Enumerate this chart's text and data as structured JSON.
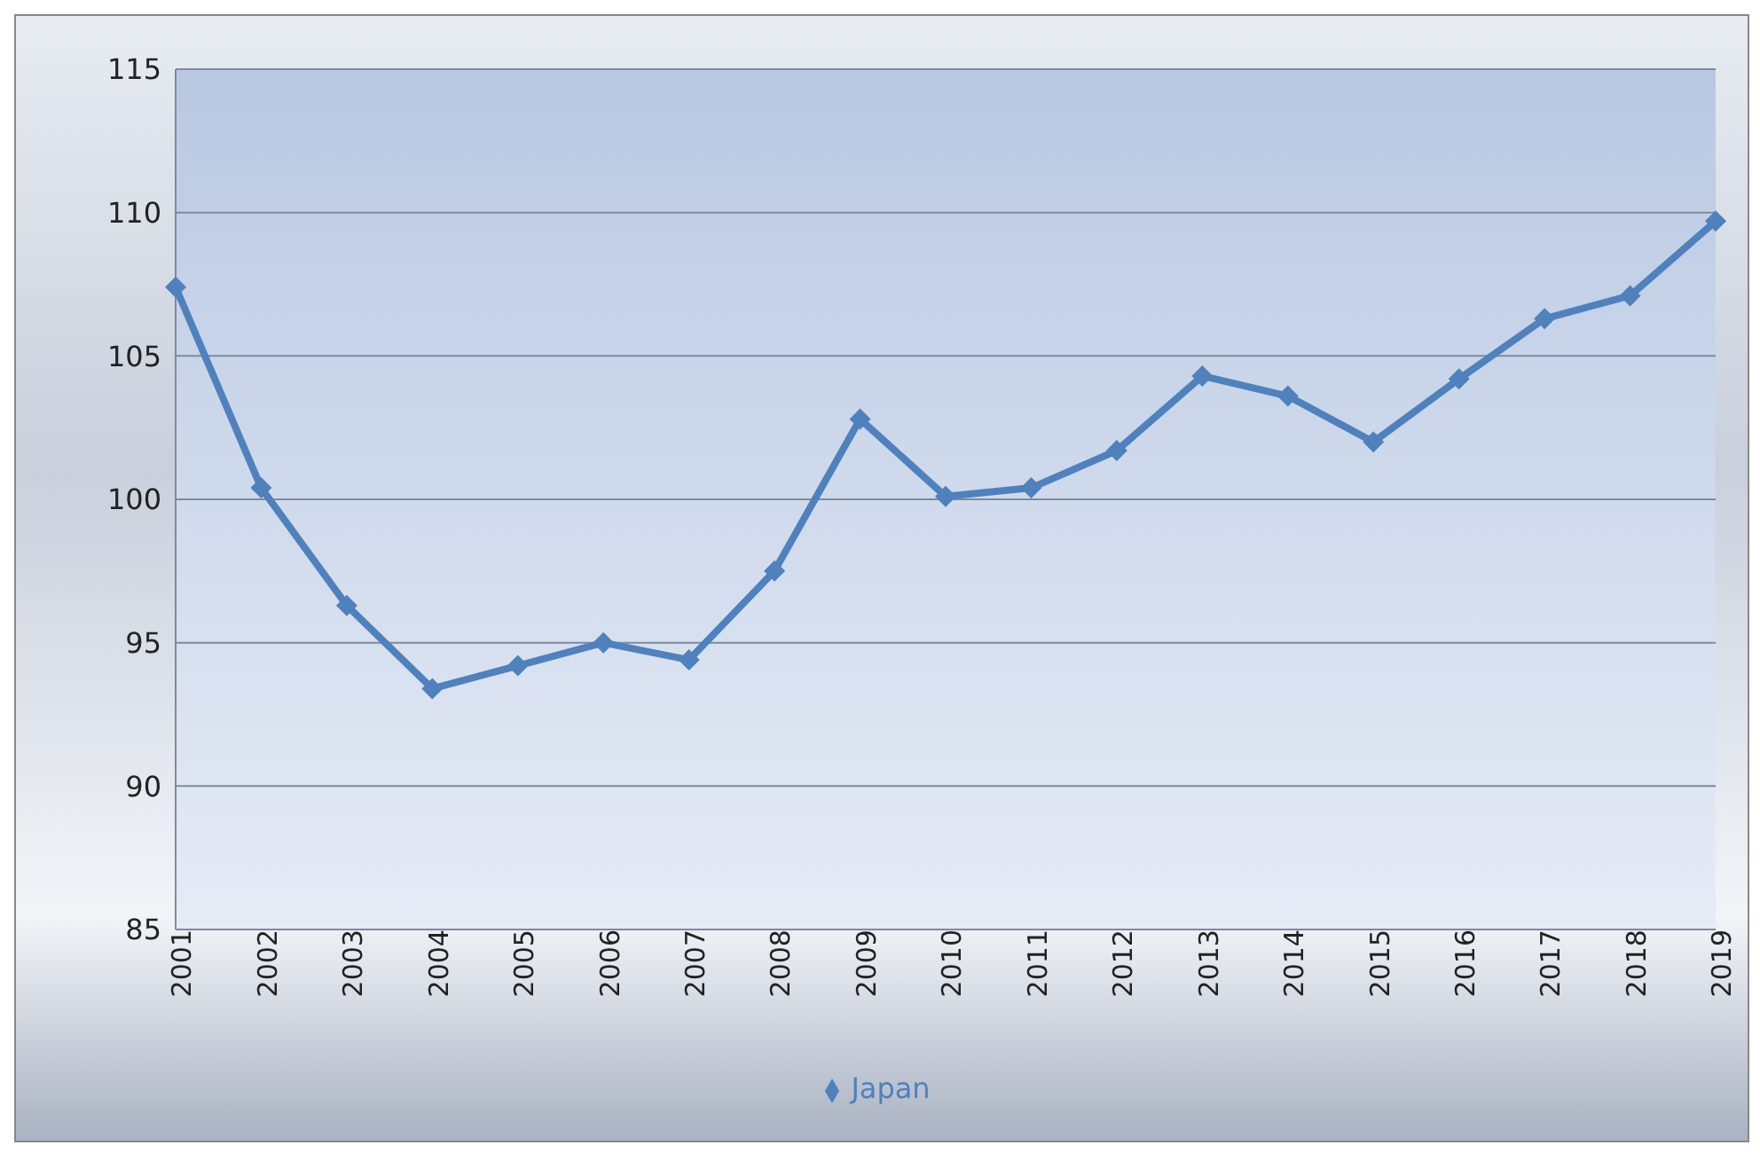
{
  "chart_data": {
    "type": "line",
    "categories": [
      "2001",
      "2002",
      "2003",
      "2004",
      "2005",
      "2006",
      "2007",
      "2008",
      "2009",
      "2010",
      "2011",
      "2012",
      "2013",
      "2014",
      "2015",
      "2016",
      "2017",
      "2018",
      "2019"
    ],
    "series": [
      {
        "name": "Japan",
        "color": "#4f81bd",
        "values": [
          107.4,
          100.4,
          96.3,
          93.4,
          94.2,
          95.0,
          94.4,
          97.5,
          102.8,
          100.1,
          100.4,
          101.7,
          104.3,
          103.6,
          102.0,
          104.2,
          106.3,
          107.1,
          109.7
        ]
      }
    ],
    "ylim": [
      85,
      115
    ],
    "yticks": [
      85,
      90,
      95,
      100,
      105,
      110,
      115
    ],
    "grid": "y",
    "legend": "bottom",
    "marker": "diamond",
    "line_style": "solid"
  }
}
